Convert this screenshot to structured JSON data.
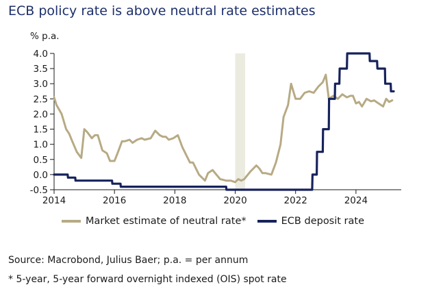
{
  "chart_data": {
    "type": "line",
    "title": "ECB policy rate is above neutral rate estimates",
    "ylabel": "% p.a.",
    "xlabel": "",
    "ylim": [
      -0.5,
      4.0
    ],
    "xlim": [
      2014,
      2025.5
    ],
    "y_ticks": [
      "4.0",
      "3.5",
      "3.0",
      "2.5",
      "2.0",
      "1.5",
      "1.0",
      "0.5",
      "0.0",
      "-0.5"
    ],
    "x_ticks": [
      "2014",
      "2016",
      "2018",
      "2020",
      "2022",
      "2024"
    ],
    "grid": false,
    "highlight_band": {
      "x": [
        2020.0,
        2020.33
      ],
      "color": "#ebebe0"
    },
    "series": [
      {
        "name": "Market estimate of neutral rate*",
        "color": "#b7aa84",
        "x": [
          2014.0,
          2014.08,
          2014.25,
          2014.4,
          2014.5,
          2014.6,
          2014.75,
          2014.9,
          2015.0,
          2015.1,
          2015.25,
          2015.35,
          2015.45,
          2015.6,
          2015.75,
          2015.85,
          2016.0,
          2016.1,
          2016.25,
          2016.35,
          2016.5,
          2016.6,
          2016.75,
          2016.9,
          2017.0,
          2017.2,
          2017.35,
          2017.5,
          2017.6,
          2017.7,
          2017.8,
          2017.95,
          2018.1,
          2018.25,
          2018.4,
          2018.5,
          2018.6,
          2018.8,
          2019.0,
          2019.1,
          2019.25,
          2019.5,
          2019.7,
          2019.85,
          2020.0,
          2020.1,
          2020.2,
          2020.3,
          2020.5,
          2020.7,
          2020.8,
          2020.9,
          2021.0,
          2021.2,
          2021.35,
          2021.5,
          2021.6,
          2021.75,
          2021.85,
          2022.0,
          2022.15,
          2022.3,
          2022.45,
          2022.6,
          2022.75,
          2022.9,
          2023.0,
          2023.1,
          2023.25,
          2023.4,
          2023.55,
          2023.7,
          2023.82,
          2023.9,
          2024.0,
          2024.1,
          2024.2,
          2024.35,
          2024.5,
          2024.6,
          2024.75,
          2024.9,
          2025.0,
          2025.1,
          2025.2
        ],
        "values": [
          2.55,
          2.3,
          2.0,
          1.5,
          1.35,
          1.1,
          0.75,
          0.55,
          1.5,
          1.4,
          1.2,
          1.3,
          1.3,
          0.8,
          0.7,
          0.45,
          0.45,
          0.7,
          1.1,
          1.1,
          1.15,
          1.05,
          1.15,
          1.2,
          1.15,
          1.2,
          1.45,
          1.3,
          1.25,
          1.25,
          1.15,
          1.2,
          1.3,
          0.9,
          0.6,
          0.4,
          0.4,
          0.0,
          -0.2,
          0.05,
          0.15,
          -0.15,
          -0.2,
          -0.2,
          -0.25,
          -0.15,
          -0.2,
          -0.15,
          0.1,
          0.3,
          0.2,
          0.05,
          0.05,
          0.0,
          0.4,
          1.0,
          1.9,
          2.3,
          3.0,
          2.5,
          2.5,
          2.7,
          2.75,
          2.7,
          2.9,
          3.05,
          3.3,
          2.5,
          2.6,
          2.5,
          2.65,
          2.55,
          2.6,
          2.6,
          2.35,
          2.4,
          2.25,
          2.5,
          2.42,
          2.45,
          2.35,
          2.25,
          2.5,
          2.4,
          2.45
        ]
      },
      {
        "name": "ECB deposit rate",
        "color": "#16225c",
        "x": [
          2014.0,
          2014.45,
          2014.46,
          2014.7,
          2014.71,
          2015.92,
          2015.93,
          2016.2,
          2016.21,
          2019.7,
          2019.71,
          2022.55,
          2022.56,
          2022.7,
          2022.71,
          2022.9,
          2022.91,
          2023.1,
          2023.11,
          2023.3,
          2023.31,
          2023.45,
          2023.46,
          2023.7,
          2023.71,
          2024.45,
          2024.46,
          2024.7,
          2024.71,
          2024.96,
          2024.97,
          2025.15,
          2025.16,
          2025.25
        ],
        "values": [
          0.0,
          0.0,
          -0.1,
          -0.1,
          -0.2,
          -0.2,
          -0.3,
          -0.3,
          -0.4,
          -0.4,
          -0.5,
          -0.5,
          0.0,
          0.0,
          0.75,
          0.75,
          1.5,
          1.5,
          2.5,
          2.5,
          3.0,
          3.0,
          3.5,
          3.5,
          4.0,
          4.0,
          3.75,
          3.75,
          3.5,
          3.5,
          3.0,
          3.0,
          2.75,
          2.75
        ]
      }
    ]
  },
  "legend": {
    "items": [
      {
        "label": "Market estimate of neutral rate*",
        "color": "#b7aa84"
      },
      {
        "label": "ECB deposit rate",
        "color": "#16225c"
      }
    ]
  },
  "footnotes": {
    "source": "Source: Macrobond, Julius Baer; p.a. = per annum",
    "note": "* 5-year, 5-year forward overnight indexed (OIS) spot rate"
  }
}
